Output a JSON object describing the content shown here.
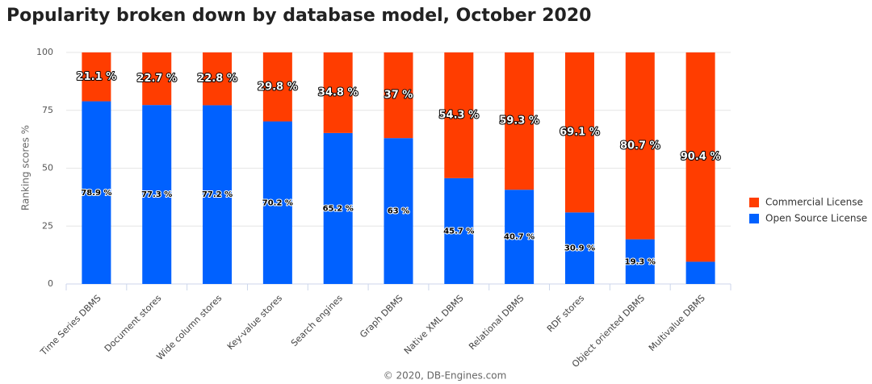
{
  "chart_data": {
    "type": "stacked-bar",
    "title": "Popularity broken down by database model, October 2020",
    "y_label": "Ranking scores %",
    "footer": "© 2020, DB-Engines.com",
    "categories": [
      "Time Series DBMS",
      "Document stores",
      "Wide column stores",
      "Key-value stores",
      "Search engines",
      "Graph DBMS",
      "Native XML DBMS",
      "Relational DBMS",
      "RDF stores",
      "Object oriented DBMS",
      "Multivalue DBMS"
    ],
    "series": [
      {
        "name": "Commercial License",
        "color": "#ff3d00",
        "values": [
          21.1,
          22.7,
          22.8,
          29.8,
          34.8,
          37,
          54.3,
          59.3,
          69.1,
          80.7,
          90.4
        ],
        "value_labels": [
          "21.1 %",
          "22.7 %",
          "22.8 %",
          "29.8 %",
          "34.8 %",
          "37 %",
          "54.3 %",
          "59.3 %",
          "69.1 %",
          "80.7 %",
          "90.4 %"
        ]
      },
      {
        "name": "Open Source License",
        "color": "#0061ff",
        "values": [
          78.9,
          77.3,
          77.2,
          70.2,
          65.2,
          63,
          45.7,
          40.7,
          30.9,
          19.3,
          9.6
        ],
        "value_labels": [
          "78.9 %",
          "77.3 %",
          "77.2 %",
          "70.2 %",
          "65.2 %",
          "63 %",
          "45.7 %",
          "40.7 %",
          "30.9 %",
          "19.3 %",
          null
        ]
      }
    ],
    "ylim": [
      0,
      100
    ],
    "yticks": [
      0,
      25,
      50,
      75,
      100
    ],
    "grid": true,
    "legend": "right"
  }
}
